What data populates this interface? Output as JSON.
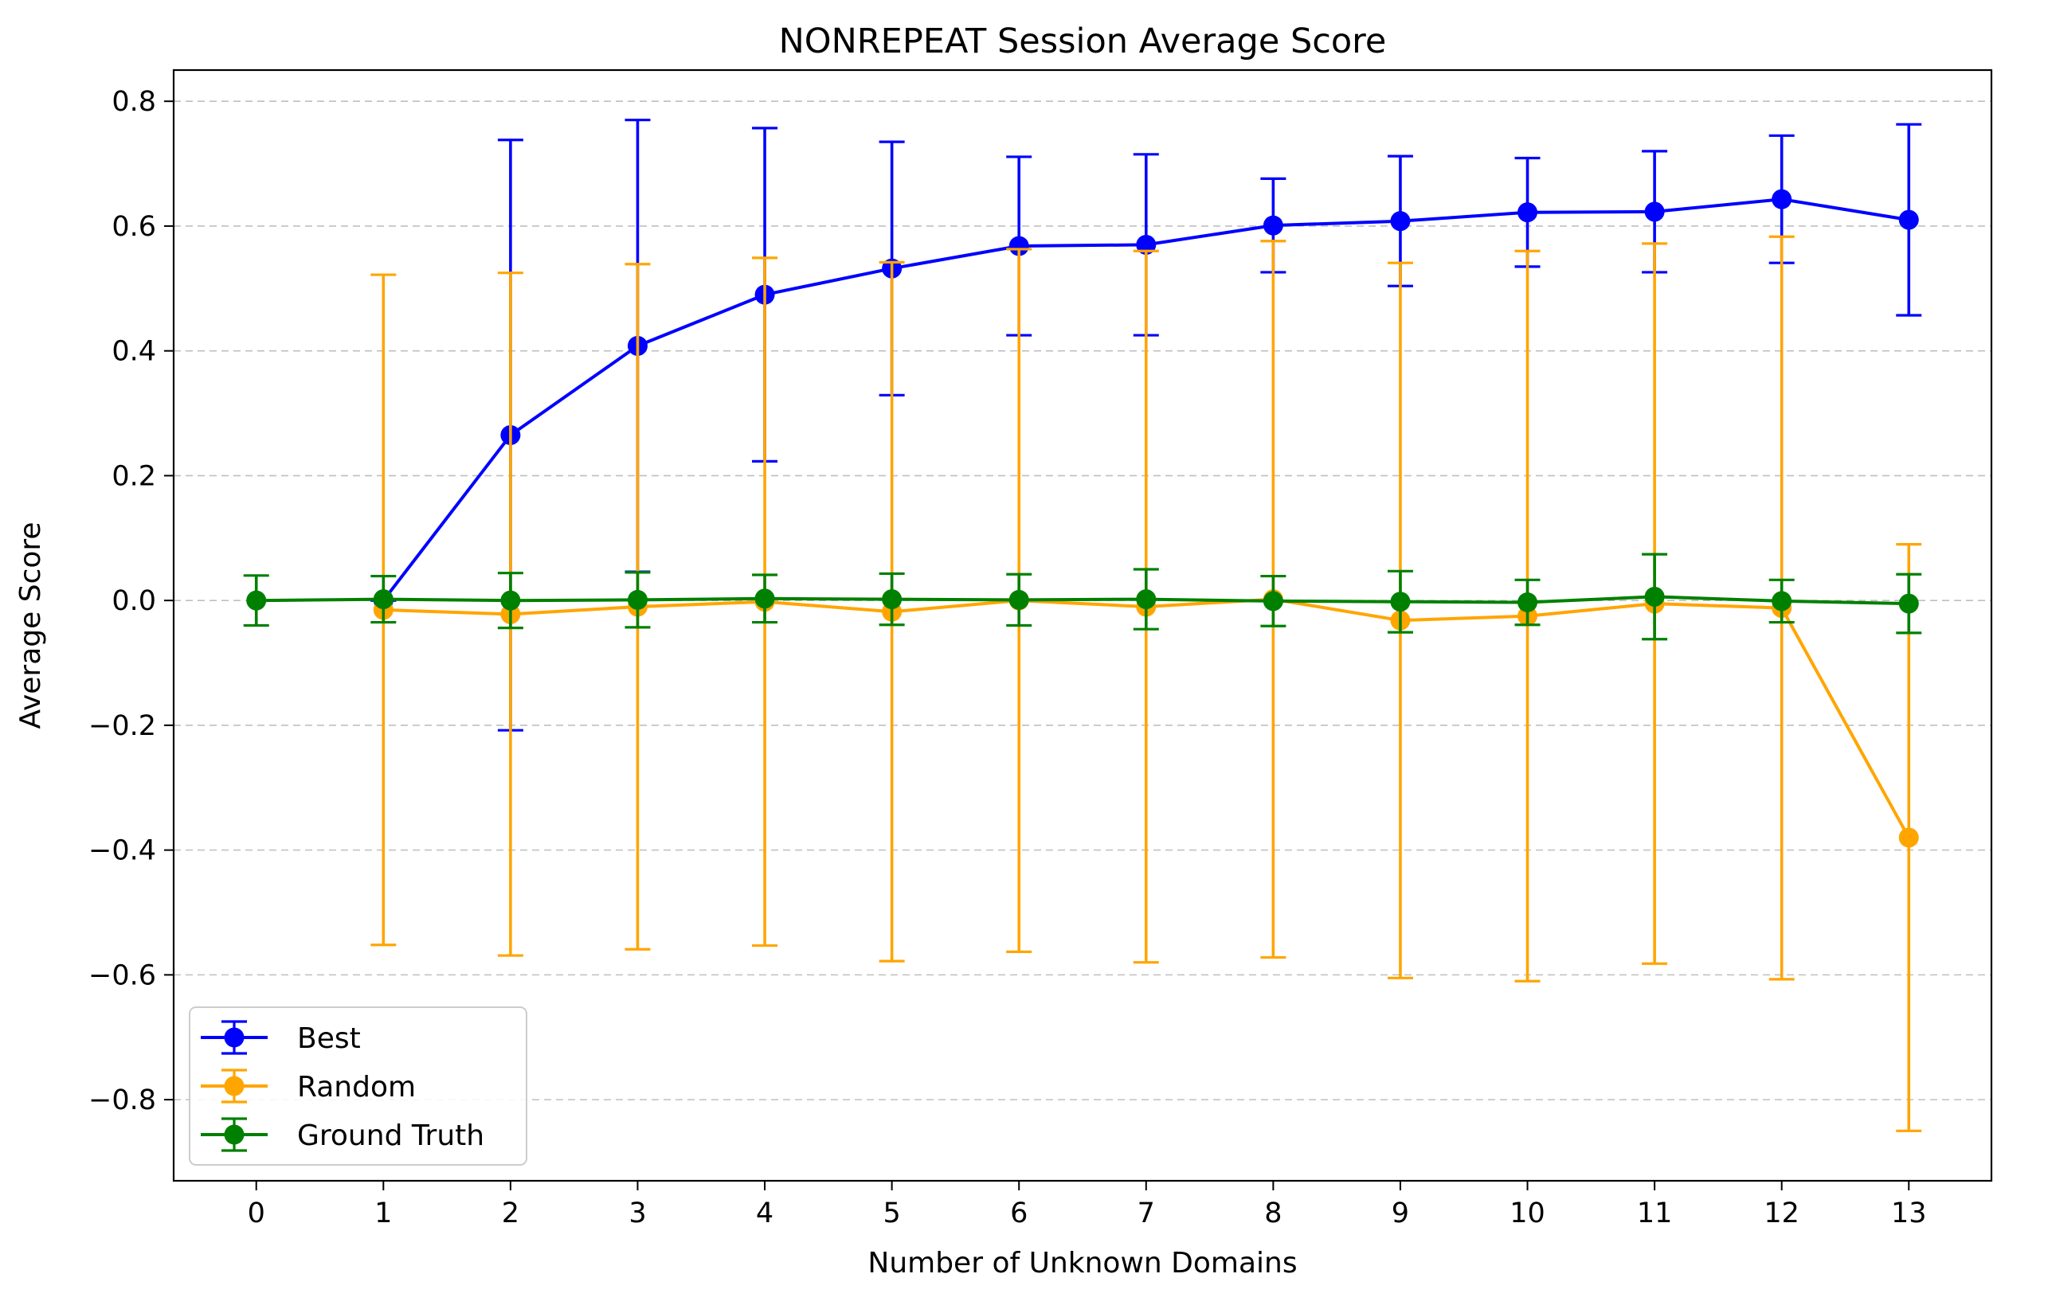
{
  "chart_data": {
    "type": "line",
    "title": "NONREPEAT Session Average Score",
    "xlabel": "Number of Unknown Domains",
    "ylabel": "Average Score",
    "xlim": [
      -0.65,
      13.65
    ],
    "ylim": [
      -0.93,
      0.85
    ],
    "x_ticks": [
      0,
      1,
      2,
      3,
      4,
      5,
      6,
      7,
      8,
      9,
      10,
      11,
      12,
      13
    ],
    "y_ticks": [
      -0.8,
      -0.6,
      -0.4,
      -0.2,
      0.0,
      0.2,
      0.4,
      0.6,
      0.8
    ],
    "y_tick_labels": [
      "−0.8",
      "−0.6",
      "−0.4",
      "−0.2",
      "0.0",
      "0.2",
      "0.4",
      "0.6",
      "0.8"
    ],
    "grid": {
      "axis": "y",
      "style": "dashed"
    },
    "legend_position": "lower-left",
    "series": [
      {
        "name": "Best",
        "color": "#0000ff",
        "x": [
          1,
          2,
          3,
          4,
          5,
          6,
          7,
          8,
          9,
          10,
          11,
          12,
          13
        ],
        "y": [
          0.0,
          0.265,
          0.408,
          0.49,
          0.532,
          0.568,
          0.57,
          0.601,
          0.608,
          0.622,
          0.623,
          0.643,
          0.61
        ],
        "yerr": [
          0.0,
          0.473,
          0.362,
          0.267,
          0.203,
          0.143,
          0.145,
          0.075,
          0.104,
          0.087,
          0.097,
          0.102,
          0.153
        ]
      },
      {
        "name": "Random",
        "color": "#ffa500",
        "x": [
          1,
          2,
          3,
          4,
          5,
          6,
          7,
          8,
          9,
          10,
          11,
          12,
          13
        ],
        "y": [
          -0.015,
          -0.022,
          -0.01,
          -0.002,
          -0.018,
          0.0,
          -0.01,
          0.002,
          -0.032,
          -0.025,
          -0.005,
          -0.012,
          -0.38
        ],
        "yerr": [
          0.537,
          0.547,
          0.549,
          0.551,
          0.56,
          0.563,
          0.57,
          0.574,
          0.573,
          0.585,
          0.577,
          0.595,
          0.47
        ]
      },
      {
        "name": "Ground Truth",
        "color": "#008000",
        "x": [
          0,
          1,
          2,
          3,
          4,
          5,
          6,
          7,
          8,
          9,
          10,
          11,
          12,
          13
        ],
        "y": [
          0.0,
          0.002,
          0.0,
          0.001,
          0.003,
          0.002,
          0.001,
          0.002,
          -0.001,
          -0.002,
          -0.003,
          0.006,
          -0.001,
          -0.005
        ],
        "yerr": [
          0.04,
          0.037,
          0.044,
          0.044,
          0.038,
          0.041,
          0.041,
          0.048,
          0.04,
          0.049,
          0.036,
          0.068,
          0.034,
          0.047
        ]
      }
    ]
  }
}
